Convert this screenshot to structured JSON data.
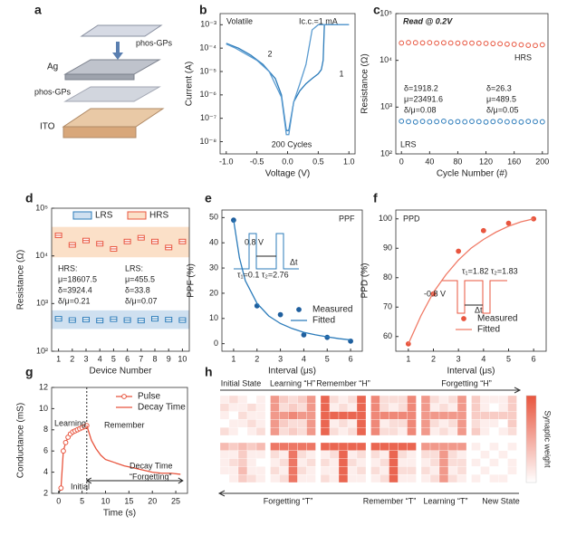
{
  "panel_letters": [
    "a",
    "b",
    "c",
    "d",
    "e",
    "f",
    "g",
    "h"
  ],
  "schematic": {
    "labels": [
      "phos-GPs",
      "Ag",
      "phos-GPs",
      "ITO"
    ]
  },
  "chart_data": [
    {
      "type": "line",
      "xlabel": "Voltage (V)",
      "ylabel": "Current (A)",
      "ylog": true,
      "xlim": [
        -1.1,
        1.1
      ],
      "ylim": [
        3e-09,
        0.003
      ],
      "xticks": [
        {
          "value": -1,
          "label": "-1.0"
        },
        -0.5,
        {
          "value": 0,
          "label": "0.0"
        },
        0.5,
        {
          "value": 1,
          "label": "1.0"
        }
      ],
      "yticks": [
        {
          "value": 1e-08,
          "label": "10⁻⁸"
        },
        {
          "value": 1e-07,
          "label": "10⁻⁷"
        },
        {
          "value": 1e-06,
          "label": "10⁻⁶"
        },
        {
          "value": 1e-05,
          "label": "10⁻⁵"
        },
        {
          "value": 0.0001,
          "label": "10⁻⁴"
        },
        {
          "value": 0.001,
          "label": "10⁻³"
        }
      ],
      "annotations": [
        {
          "text": "Volatile",
          "color": "#222"
        },
        {
          "text": "Ic.c.=1 mA",
          "color": "#222"
        },
        {
          "text": "200 Cycles",
          "color": "#222"
        },
        {
          "text": "1",
          "color": "#222"
        },
        {
          "text": "2",
          "color": "#222"
        }
      ],
      "series": [
        {
          "color": "#2b7bba",
          "mode": "line",
          "x": [
            -1,
            -0.8,
            -0.6,
            -0.4,
            -0.2,
            -0.1,
            -0.02,
            0.02,
            0.1,
            0.2,
            0.3,
            0.4,
            0.5,
            0.55,
            0.58,
            0.6,
            0.8,
            1
          ],
          "values": [
            0.00016,
            0.0001,
            5e-05,
            2e-05,
            5e-06,
            1e-06,
            3e-08,
            3e-08,
            5e-07,
            1.5e-06,
            3e-06,
            5e-06,
            8e-06,
            1.2e-05,
            3e-05,
            0.001,
            0.001,
            0.001
          ]
        },
        {
          "color": "#5a9bd0",
          "mode": "line",
          "x": [
            1,
            0.8,
            0.6,
            0.5,
            0.4,
            0.3,
            0.2,
            0.1,
            0.02,
            -0.02,
            -0.1,
            -0.3,
            -0.5,
            -0.7,
            -0.85,
            -1
          ],
          "values": [
            0.001,
            0.001,
            0.001,
            0.001,
            0.0006,
            2e-05,
            3e-06,
            5e-07,
            2e-08,
            2e-08,
            8e-07,
            1e-05,
            3e-05,
            6e-05,
            0.0001,
            0.00015
          ]
        }
      ]
    },
    {
      "type": "scatter",
      "xlabel": "Cycle Number (#)",
      "ylabel": "Resistance (Ω)",
      "ylog": true,
      "xlim": [
        -8,
        208
      ],
      "ylim": [
        100,
        100000
      ],
      "xticks": [
        0,
        40,
        80,
        120,
        160,
        200
      ],
      "yticks": [
        {
          "value": 100,
          "label": "10²"
        },
        {
          "value": 1000,
          "label": "10³"
        },
        {
          "value": 10000,
          "label": "10⁴"
        },
        {
          "value": 100000,
          "label": "10⁵"
        }
      ],
      "annotations": [
        {
          "text": "Read @ 0.2V",
          "color": "#222"
        },
        {
          "text": "HRS",
          "color": "#e8553e"
        },
        {
          "text": "LRS",
          "color": "#2b7bba"
        },
        {
          "text": "δ=1918.2",
          "color": "#2b7bba"
        },
        {
          "text": "μ=23491.6",
          "color": "#2b7bba"
        },
        {
          "text": "δ/μ=0.08",
          "color": "#2b7bba"
        },
        {
          "text": "δ=26.3",
          "color": "#e8553e"
        },
        {
          "text": "μ=489.5",
          "color": "#e8553e"
        },
        {
          "text": "δ/μ=0.05",
          "color": "#e8553e"
        }
      ],
      "x": [
        0,
        10,
        20,
        30,
        40,
        50,
        60,
        70,
        80,
        90,
        100,
        110,
        120,
        130,
        140,
        150,
        160,
        170,
        180,
        190,
        200
      ],
      "series": [
        {
          "color": "#e8553e",
          "mode": "markers",
          "marker": "open",
          "values": [
            23500,
            24000,
            23800,
            23600,
            23900,
            23400,
            23700,
            23500,
            23300,
            23600,
            23400,
            23200,
            23000,
            22800,
            22600,
            22200,
            22000,
            21500,
            21000,
            20800,
            21500
          ]
        },
        {
          "color": "#2b7bba",
          "mode": "markers",
          "marker": "open",
          "values": [
            500,
            490,
            480,
            495,
            485,
            490,
            500,
            480,
            490,
            485,
            495,
            490,
            480,
            490,
            500,
            485,
            490,
            480,
            495,
            490,
            485
          ]
        }
      ]
    },
    {
      "type": "box",
      "xlabel": "Device Number",
      "ylabel": "Resistance (Ω)",
      "ylog": true,
      "legend": "top",
      "ylim": [
        100,
        100000
      ],
      "categories": [
        "1",
        "2",
        "3",
        "4",
        "5",
        "6",
        "7",
        "8",
        "9",
        "10"
      ],
      "yticks": [
        {
          "value": 100,
          "label": "10²"
        },
        {
          "value": 1000,
          "label": "10³"
        },
        {
          "value": 10000,
          "label": "10⁴"
        },
        {
          "value": 100000,
          "label": "10⁵"
        }
      ],
      "annotations": [
        {
          "text": "HRS:",
          "color": "#e8553e"
        },
        {
          "text": "μ=18607.5",
          "color": "#e8553e"
        },
        {
          "text": "δ=3924.4",
          "color": "#e8553e"
        },
        {
          "text": "δ/μ=0.21",
          "color": "#e8553e"
        },
        {
          "text": "LRS:",
          "color": "#2b7bba"
        },
        {
          "text": "μ=455.5",
          "color": "#2b7bba"
        },
        {
          "text": "δ=33.8",
          "color": "#2b7bba"
        },
        {
          "text": "δ/μ=0.07",
          "color": "#2b7bba"
        }
      ],
      "series": [
        {
          "name": "LRS",
          "color": "#2b7bba",
          "band": "#cfe0f0",
          "values": [
            480,
            450,
            460,
            440,
            470,
            450,
            440,
            480,
            460,
            450
          ]
        },
        {
          "name": "HRS",
          "color": "#e8553e",
          "band": "#fbe0c8",
          "values": [
            27000,
            17000,
            21000,
            18000,
            14000,
            20000,
            24000,
            20000,
            15000,
            20000
          ]
        }
      ]
    },
    {
      "type": "scatter",
      "xlabel": "Interval (μs)",
      "ylabel": "PPF (%)",
      "legend": "right",
      "xlim": [
        0.5,
        6.5
      ],
      "ylim": [
        -3,
        53
      ],
      "xticks": [
        1,
        2,
        3,
        4,
        5,
        6
      ],
      "yticks": [
        0,
        10,
        20,
        30,
        40,
        50
      ],
      "annotations": [
        {
          "text": "PPF",
          "color": "#222"
        },
        {
          "text": "0.8 V",
          "color": "#222"
        },
        {
          "text": "Δt",
          "color": "#222"
        },
        {
          "text": "τ₁=0.1 τ₂=2.76",
          "color": "#222"
        }
      ],
      "series": [
        {
          "name": "Measured",
          "color": "#1f5f9e",
          "mode": "markers",
          "x": [
            1,
            2,
            3,
            4,
            5,
            6
          ],
          "values": [
            49,
            15,
            11.5,
            3.5,
            2.5,
            1
          ]
        },
        {
          "name": "Fitted",
          "color": "#2b7bba",
          "mode": "line",
          "x": [
            1,
            1.25,
            1.5,
            2,
            2.5,
            3,
            3.5,
            4,
            4.5,
            5,
            5.5,
            6
          ],
          "values": [
            49,
            34,
            25,
            16,
            11,
            8,
            6,
            4.5,
            3.5,
            2.7,
            2,
            1.5
          ]
        }
      ]
    },
    {
      "type": "scatter",
      "xlabel": "Interval (μs)",
      "ylabel": "PPD (%)",
      "legend": "lower right",
      "xlim": [
        0.5,
        6.5
      ],
      "ylim": [
        55,
        103
      ],
      "xticks": [
        1,
        2,
        3,
        4,
        5,
        6
      ],
      "yticks": [
        60,
        70,
        80,
        90,
        100
      ],
      "annotations": [
        {
          "text": "PPD",
          "color": "#222"
        },
        {
          "text": "τ₁=1.82 τ₂=1.83",
          "color": "#222"
        },
        {
          "text": "-0.8 V",
          "color": "#222"
        },
        {
          "text": "Δt",
          "color": "#222"
        }
      ],
      "series": [
        {
          "name": "Measured",
          "color": "#e8553e",
          "mode": "markers",
          "x": [
            1,
            2,
            3,
            4,
            5,
            6
          ],
          "values": [
            57.5,
            74.5,
            89,
            96,
            98.5,
            100
          ]
        },
        {
          "name": "Fitted",
          "color": "#f07a66",
          "mode": "line",
          "x": [
            1,
            1.5,
            2,
            2.5,
            3,
            3.5,
            4,
            4.5,
            5,
            5.5,
            6
          ],
          "values": [
            57.5,
            67,
            75,
            81,
            86,
            90,
            93,
            95.5,
            97.5,
            99,
            100
          ]
        }
      ]
    },
    {
      "type": "line",
      "xlabel": "Time (s)",
      "ylabel": "Conductance (mS)",
      "legend": "upper right",
      "xlim": [
        -1.5,
        27.5
      ],
      "ylim": [
        2,
        12
      ],
      "xticks": [
        0,
        5,
        10,
        15,
        20,
        25
      ],
      "yticks": [
        2,
        4,
        6,
        8,
        10,
        12
      ],
      "annotations": [
        {
          "text": "Learning",
          "color": "#222"
        },
        {
          "text": "Remember",
          "color": "#222"
        },
        {
          "text": "Decay Time",
          "color": "#222"
        },
        {
          "text": "“Forgetting”",
          "color": "#222"
        },
        {
          "text": "Initial",
          "color": "#222"
        }
      ],
      "series": [
        {
          "name": "Pulse",
          "color": "#e8553e",
          "mode": "line+markers",
          "marker": "open",
          "x": [
            0.5,
            1,
            1.5,
            2,
            2.5,
            3,
            3.5,
            4,
            4.5,
            5,
            5.5,
            6
          ],
          "values": [
            2.5,
            6.0,
            6.8,
            7.3,
            7.6,
            7.8,
            7.9,
            8.0,
            8.1,
            8.2,
            8.3,
            8.4
          ]
        },
        {
          "name": "Decay Time",
          "color": "#e8553e",
          "mode": "line",
          "x": [
            6,
            7,
            8,
            9,
            10,
            12,
            14,
            16,
            18,
            20,
            22,
            24,
            26
          ],
          "values": [
            8.4,
            7.0,
            6.2,
            5.6,
            5.2,
            4.9,
            4.6,
            4.4,
            4.2,
            4.0,
            3.9,
            3.9,
            3.8
          ]
        }
      ]
    },
    {
      "type": "heatmap",
      "color": "#e8553e",
      "zlim": [
        0,
        10
      ],
      "colorbar_label": "Synaptic weight",
      "top_labels": [
        "Initial State",
        "Learning “H”",
        "Remember “H”",
        "Forgetting “H”"
      ],
      "bottom_labels": [
        "Forgetting “T”",
        "Remember “T”",
        "Learning “T”",
        "New State"
      ],
      "panels": [
        [
          [
            1,
            2,
            1,
            0,
            1
          ],
          [
            2,
            1,
            1,
            2,
            1
          ],
          [
            1,
            0,
            2,
            1,
            1
          ],
          [
            0,
            1,
            1,
            2,
            1
          ],
          [
            2,
            1,
            0,
            1,
            2
          ]
        ],
        [
          [
            6,
            3,
            2,
            3,
            6
          ],
          [
            6,
            2,
            3,
            2,
            6
          ],
          [
            6,
            6,
            7,
            6,
            6
          ],
          [
            6,
            3,
            2,
            2,
            6
          ],
          [
            6,
            2,
            3,
            2,
            6
          ]
        ],
        [
          [
            9,
            2,
            1,
            2,
            9
          ],
          [
            9,
            1,
            2,
            1,
            9
          ],
          [
            9,
            9,
            9,
            9,
            9
          ],
          [
            9,
            1,
            2,
            1,
            9
          ],
          [
            9,
            2,
            1,
            2,
            9
          ]
        ],
        [
          [
            7,
            2,
            2,
            2,
            7
          ],
          [
            7,
            2,
            1,
            2,
            7
          ],
          [
            7,
            7,
            7,
            7,
            7
          ],
          [
            7,
            1,
            2,
            2,
            7
          ],
          [
            7,
            2,
            2,
            1,
            7
          ]
        ],
        [
          [
            6,
            2,
            1,
            2,
            6
          ],
          [
            6,
            1,
            2,
            1,
            6
          ],
          [
            6,
            6,
            6,
            6,
            6
          ],
          [
            6,
            2,
            1,
            2,
            6
          ],
          [
            6,
            1,
            2,
            1,
            6
          ]
        ],
        [
          [
            3,
            1,
            1,
            1,
            3
          ],
          [
            3,
            1,
            0,
            1,
            3
          ],
          [
            3,
            3,
            3,
            3,
            3
          ],
          [
            2,
            1,
            1,
            0,
            3
          ],
          [
            3,
            1,
            0,
            1,
            2
          ]
        ],
        [
          [
            4,
            3,
            4,
            3,
            4
          ],
          [
            1,
            1,
            3,
            1,
            1
          ],
          [
            1,
            2,
            3,
            1,
            0
          ],
          [
            1,
            1,
            4,
            1,
            1
          ],
          [
            0,
            1,
            3,
            2,
            1
          ]
        ],
        [
          [
            8,
            8,
            8,
            8,
            8
          ],
          [
            2,
            1,
            8,
            2,
            1
          ],
          [
            1,
            2,
            8,
            1,
            2
          ],
          [
            2,
            1,
            8,
            2,
            1
          ],
          [
            1,
            2,
            8,
            1,
            1
          ]
        ],
        [
          [
            9,
            9,
            9,
            9,
            9
          ],
          [
            1,
            2,
            9,
            1,
            2
          ],
          [
            2,
            1,
            9,
            2,
            1
          ],
          [
            1,
            1,
            9,
            1,
            2
          ],
          [
            2,
            1,
            9,
            1,
            1
          ]
        ],
        [
          [
            9,
            9,
            9,
            9,
            9
          ],
          [
            2,
            1,
            9,
            2,
            1
          ],
          [
            1,
            2,
            9,
            1,
            1
          ],
          [
            2,
            1,
            9,
            2,
            2
          ],
          [
            1,
            2,
            9,
            1,
            1
          ]
        ],
        [
          [
            6,
            6,
            6,
            6,
            6
          ],
          [
            2,
            2,
            6,
            2,
            1
          ],
          [
            1,
            2,
            6,
            2,
            2
          ],
          [
            2,
            1,
            6,
            1,
            2
          ],
          [
            1,
            2,
            6,
            2,
            1
          ]
        ],
        [
          [
            1,
            0,
            1,
            0,
            1
          ],
          [
            0,
            1,
            0,
            1,
            0
          ],
          [
            1,
            0,
            1,
            0,
            1
          ],
          [
            0,
            1,
            0,
            0,
            1
          ],
          [
            1,
            0,
            1,
            1,
            0
          ]
        ]
      ]
    }
  ]
}
